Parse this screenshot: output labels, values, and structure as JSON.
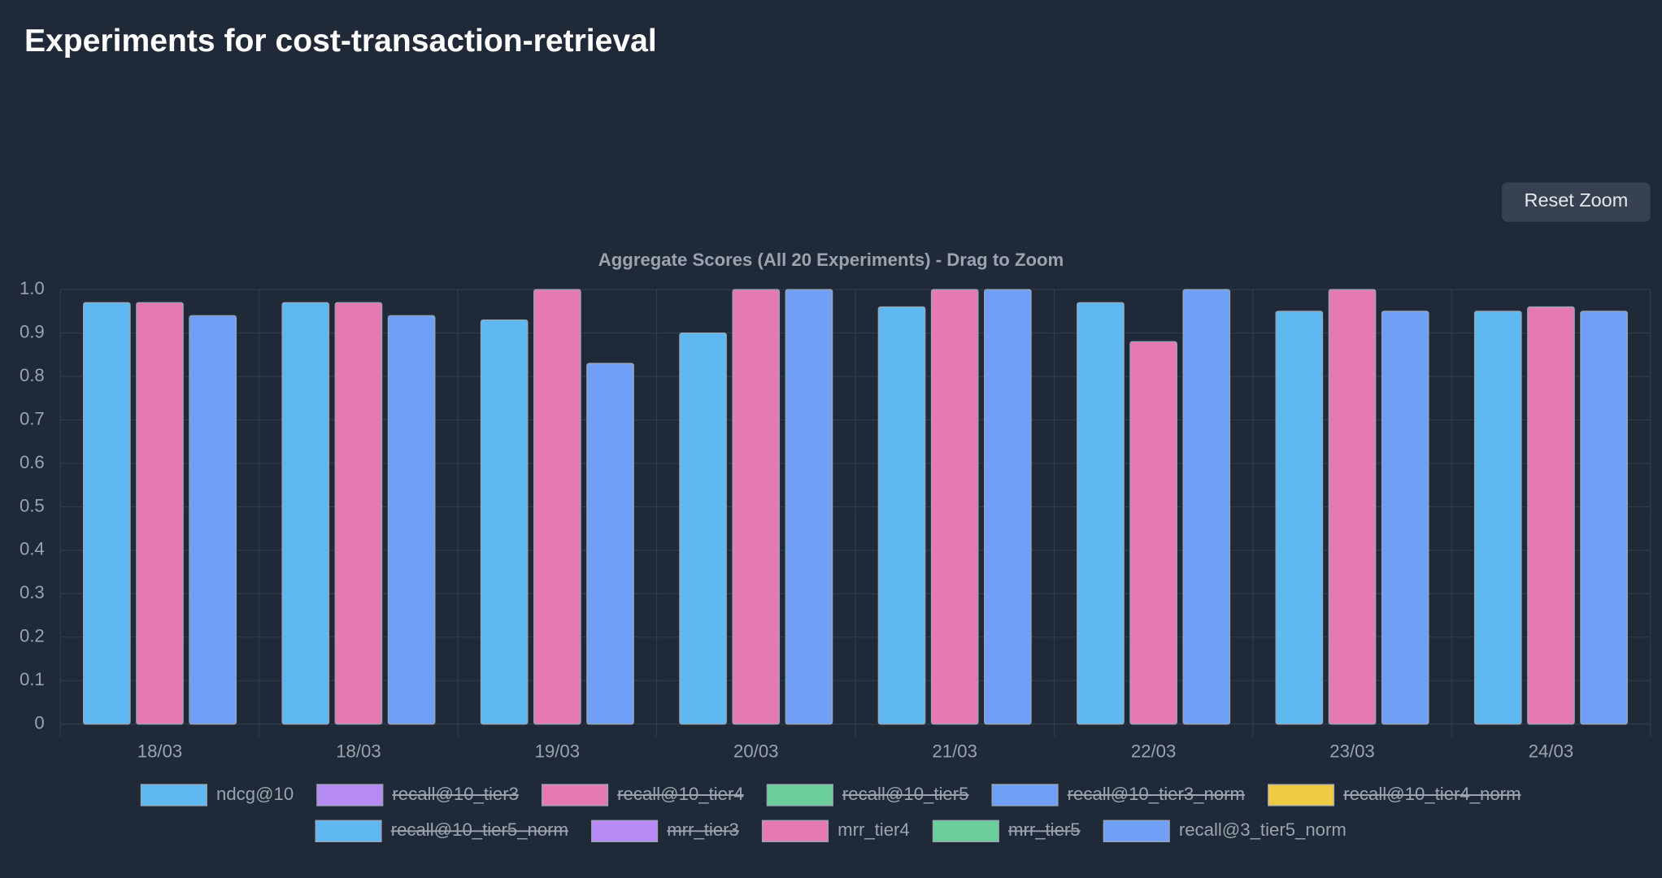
{
  "page_title": "Experiments for cost-transaction-retrieval",
  "button": "Reset Zoom",
  "chart_data": {
    "type": "bar",
    "title": "Aggregate Scores (All 20 Experiments) - Drag to Zoom",
    "categories": [
      "18/03",
      "18/03",
      "19/03",
      "20/03",
      "21/03",
      "22/03",
      "23/03",
      "24/03"
    ],
    "ylim": [
      0,
      1
    ],
    "yticks": [
      0,
      0.1,
      0.2,
      0.3,
      0.4,
      0.5,
      0.6,
      0.7,
      0.8,
      0.9,
      {
        "value": 1,
        "label": "1.0"
      }
    ],
    "grid": true,
    "series": [
      {
        "name": "ndcg@10",
        "color": "#60b8f0",
        "values": [
          0.97,
          0.97,
          0.93,
          0.9,
          0.96,
          0.97,
          0.95,
          0.95
        ]
      },
      {
        "name": "recall@10_tier3",
        "color": "#b88af5",
        "hidden": true
      },
      {
        "name": "recall@10_tier4",
        "color": "#e57ab3",
        "hidden": true
      },
      {
        "name": "recall@10_tier5",
        "color": "#6acd9a",
        "hidden": true
      },
      {
        "name": "recall@10_tier3_norm",
        "color": "#6fa0f5",
        "hidden": true
      },
      {
        "name": "recall@10_tier4_norm",
        "color": "#efcb45",
        "hidden": true
      },
      {
        "name": "recall@10_tier5_norm",
        "color": "#60b8f0",
        "hidden": true
      },
      {
        "name": "mrr_tier3",
        "color": "#b88af5",
        "hidden": true
      },
      {
        "name": "mrr_tier4",
        "color": "#e57ab3",
        "values": [
          0.97,
          0.97,
          1.0,
          1.0,
          1.0,
          0.88,
          1.0,
          0.96
        ]
      },
      {
        "name": "mrr_tier5",
        "color": "#6acd9a",
        "hidden": true
      },
      {
        "name": "recall@3_tier5_norm",
        "color": "#6fa0f5",
        "values": [
          0.94,
          0.94,
          0.83,
          1.0,
          1.0,
          1.0,
          0.95,
          0.95
        ]
      }
    ]
  }
}
